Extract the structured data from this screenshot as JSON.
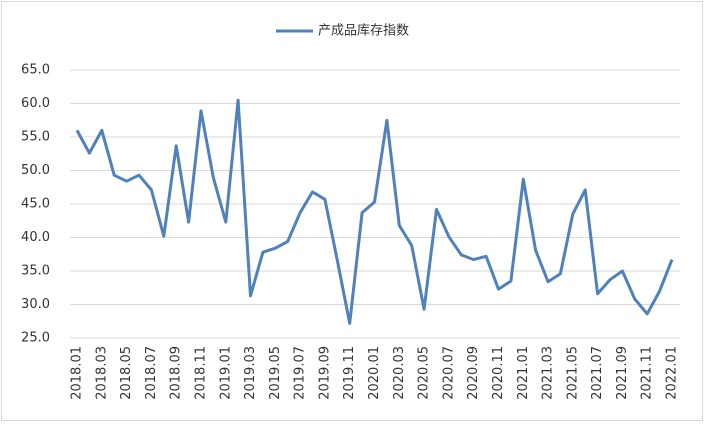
{
  "chart_data": {
    "type": "line",
    "categories": [
      "2018.01",
      null,
      "2018.03",
      null,
      "2018.05",
      null,
      "2018.07",
      null,
      "2018.09",
      null,
      "2018.11",
      null,
      "2019.01",
      null,
      "2019.03",
      null,
      "2019.05",
      null,
      "2019.07",
      null,
      "2019.09",
      null,
      "2019.11",
      null,
      "2020.01",
      null,
      "2020.03",
      null,
      "2020.05",
      null,
      "2020.07",
      null,
      "2020.09",
      null,
      "2020.11",
      null,
      "2021.01",
      null,
      "2021.03",
      null,
      "2021.05",
      null,
      "2021.07",
      null,
      "2021.09",
      null,
      "2021.11",
      null,
      "2022.01"
    ],
    "series": [
      {
        "name": "产成品库存指数",
        "color": "#4f81bd",
        "values": [
          56.0,
          52.6,
          56.0,
          49.3,
          48.4,
          49.3,
          47.1,
          40.2,
          53.7,
          42.3,
          58.9,
          48.9,
          42.3,
          60.5,
          31.3,
          37.8,
          38.4,
          39.4,
          43.7,
          46.8,
          45.7,
          36.6,
          27.2,
          43.7,
          45.3,
          57.5,
          41.8,
          38.8,
          29.3,
          44.2,
          40.1,
          37.4,
          36.7,
          37.2,
          32.3,
          33.5,
          48.7,
          38.1,
          33.4,
          34.6,
          43.5,
          47.1,
          31.6,
          33.7,
          35.0,
          30.8,
          28.6,
          32.0,
          36.7
        ]
      }
    ],
    "ylim": [
      25,
      65
    ],
    "yticks": [
      {
        "value": 25,
        "label": "25.0"
      },
      {
        "value": 30,
        "label": "30.0"
      },
      {
        "value": 35,
        "label": "35.0"
      },
      {
        "value": 40,
        "label": "40.0"
      },
      {
        "value": 45,
        "label": "45.0"
      },
      {
        "value": 50,
        "label": "50.0"
      },
      {
        "value": 55,
        "label": "55.0"
      },
      {
        "value": 60,
        "label": "60.0"
      },
      {
        "value": 65,
        "label": "65.0"
      }
    ],
    "grid": true
  }
}
